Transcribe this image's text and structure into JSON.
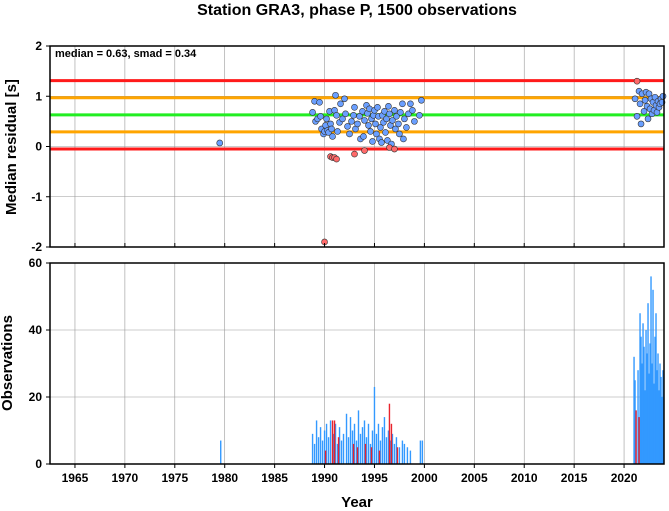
{
  "chart_data": [
    {
      "type": "scatter",
      "title": "Station GRA3, phase P, 1500 observations",
      "annotation": "median = 0.63, smad = 0.34",
      "xlabel": "",
      "ylabel": "Median residual [s]",
      "xlim": [
        1962.5,
        2024
      ],
      "ylim": [
        -2,
        2
      ],
      "yticks": [
        -2,
        -1,
        0,
        1,
        2
      ],
      "grid": true,
      "hlines": [
        {
          "y": 1.31,
          "color": "#ff1a1a"
        },
        {
          "y": 0.97,
          "color": "#ffa500"
        },
        {
          "y": 0.63,
          "color": "#22ee22"
        },
        {
          "y": 0.29,
          "color": "#ffa500"
        },
        {
          "y": -0.05,
          "color": "#ff1a1a"
        }
      ],
      "series": [
        {
          "color": "#6a9fff",
          "points": [
            [
              1979.5,
              0.07
            ],
            [
              1988.8,
              0.68
            ],
            [
              1989.0,
              0.9
            ],
            [
              1989.1,
              0.5
            ],
            [
              1989.3,
              0.55
            ],
            [
              1989.5,
              0.88
            ],
            [
              1989.6,
              0.6
            ],
            [
              1989.7,
              0.35
            ],
            [
              1989.9,
              0.25
            ],
            [
              1990.0,
              0.3
            ],
            [
              1990.1,
              0.42
            ],
            [
              1990.2,
              0.55
            ],
            [
              1990.3,
              0.32
            ],
            [
              1990.4,
              0.28
            ],
            [
              1990.5,
              0.7
            ],
            [
              1990.6,
              0.45
            ],
            [
              1990.7,
              0.35
            ],
            [
              1990.8,
              0.2
            ],
            [
              1991.0,
              0.72
            ],
            [
              1991.1,
              1.02
            ],
            [
              1991.2,
              0.62
            ],
            [
              1991.3,
              0.3
            ],
            [
              1991.5,
              0.48
            ],
            [
              1991.6,
              0.85
            ],
            [
              1991.8,
              0.55
            ],
            [
              1992.0,
              0.95
            ],
            [
              1992.1,
              0.65
            ],
            [
              1992.3,
              0.4
            ],
            [
              1992.5,
              0.25
            ],
            [
              1992.7,
              0.5
            ],
            [
              1992.9,
              0.62
            ],
            [
              1993.0,
              0.78
            ],
            [
              1993.1,
              0.35
            ],
            [
              1993.3,
              0.45
            ],
            [
              1993.5,
              0.6
            ],
            [
              1993.6,
              0.15
            ],
            [
              1993.8,
              0.7
            ],
            [
              1993.9,
              0.2
            ],
            [
              1994.0,
              0.52
            ],
            [
              1994.2,
              0.82
            ],
            [
              1994.3,
              0.66
            ],
            [
              1994.4,
              0.42
            ],
            [
              1994.5,
              0.75
            ],
            [
              1994.6,
              0.3
            ],
            [
              1994.7,
              0.55
            ],
            [
              1994.8,
              0.1
            ],
            [
              1994.9,
              0.62
            ],
            [
              1995.0,
              0.72
            ],
            [
              1995.1,
              0.45
            ],
            [
              1995.2,
              0.25
            ],
            [
              1995.3,
              0.78
            ],
            [
              1995.4,
              0.6
            ],
            [
              1995.5,
              0.15
            ],
            [
              1995.6,
              0.38
            ],
            [
              1995.7,
              0.08
            ],
            [
              1995.8,
              0.62
            ],
            [
              1995.9,
              0.48
            ],
            [
              1996.0,
              0.7
            ],
            [
              1996.1,
              0.28
            ],
            [
              1996.2,
              0.55
            ],
            [
              1996.3,
              0.12
            ],
            [
              1996.4,
              0.8
            ],
            [
              1996.5,
              0.65
            ],
            [
              1996.6,
              0.42
            ],
            [
              1996.7,
              0.05
            ],
            [
              1996.8,
              0.52
            ],
            [
              1997.0,
              0.72
            ],
            [
              1997.1,
              0.35
            ],
            [
              1997.2,
              0.6
            ],
            [
              1997.4,
              0.45
            ],
            [
              1997.5,
              0.25
            ],
            [
              1997.6,
              0.68
            ],
            [
              1997.8,
              0.85
            ],
            [
              1997.9,
              0.15
            ],
            [
              1998.0,
              0.55
            ],
            [
              1998.2,
              0.38
            ],
            [
              1998.4,
              0.65
            ],
            [
              1998.6,
              0.85
            ],
            [
              1998.8,
              0.72
            ],
            [
              1999.0,
              0.5
            ],
            [
              1999.5,
              0.62
            ],
            [
              1999.7,
              0.92
            ],
            [
              2021.1,
              0.95
            ],
            [
              2021.3,
              0.6
            ],
            [
              2021.5,
              1.1
            ],
            [
              2021.6,
              0.85
            ],
            [
              2021.7,
              0.45
            ],
            [
              2021.8,
              1.05
            ],
            [
              2022.0,
              0.7
            ],
            [
              2022.1,
              0.92
            ],
            [
              2022.2,
              1.08
            ],
            [
              2022.3,
              0.8
            ],
            [
              2022.4,
              0.55
            ],
            [
              2022.5,
              1.05
            ],
            [
              2022.6,
              0.75
            ],
            [
              2022.7,
              0.95
            ],
            [
              2022.8,
              0.65
            ],
            [
              2022.9,
              0.88
            ],
            [
              2023.0,
              0.72
            ],
            [
              2023.1,
              0.98
            ],
            [
              2023.2,
              0.82
            ],
            [
              2023.3,
              0.68
            ],
            [
              2023.4,
              0.9
            ],
            [
              2023.5,
              0.78
            ],
            [
              2023.6,
              0.85
            ],
            [
              2023.7,
              0.95
            ],
            [
              2023.8,
              0.88
            ],
            [
              2023.9,
              1.0
            ]
          ]
        },
        {
          "color": "#ff6a6a",
          "points": [
            [
              1990.0,
              -1.9
            ],
            [
              1990.6,
              -0.2
            ],
            [
              1990.8,
              -0.22
            ],
            [
              1991.0,
              -0.22
            ],
            [
              1991.2,
              -0.25
            ],
            [
              1993.0,
              -0.15
            ],
            [
              1994.0,
              -0.08
            ],
            [
              1996.5,
              -0.02
            ],
            [
              1997.0,
              -0.05
            ],
            [
              2021.3,
              1.3
            ]
          ]
        }
      ]
    },
    {
      "type": "bar",
      "xlabel": "Year",
      "ylabel": "Observations",
      "xlim": [
        1962.5,
        2024
      ],
      "ylim": [
        0,
        60
      ],
      "yticks": [
        0,
        20,
        40,
        60
      ],
      "xticks": [
        1965,
        1970,
        1975,
        1980,
        1985,
        1990,
        1995,
        2000,
        2005,
        2010,
        2015,
        2020
      ],
      "grid": true,
      "series": [
        {
          "color": "#3399ff",
          "bars": [
            [
              1979.6,
              7
            ],
            [
              1988.8,
              9
            ],
            [
              1989.0,
              6
            ],
            [
              1989.2,
              13
            ],
            [
              1989.4,
              8
            ],
            [
              1989.6,
              11
            ],
            [
              1989.8,
              7
            ],
            [
              1990.0,
              10
            ],
            [
              1990.2,
              12
            ],
            [
              1990.4,
              8
            ],
            [
              1990.6,
              13
            ],
            [
              1990.9,
              9
            ],
            [
              1991.1,
              12
            ],
            [
              1991.3,
              6
            ],
            [
              1991.5,
              11
            ],
            [
              1991.7,
              7
            ],
            [
              1991.9,
              9
            ],
            [
              1992.2,
              15
            ],
            [
              1992.4,
              8
            ],
            [
              1992.6,
              14
            ],
            [
              1992.8,
              10
            ],
            [
              1993.0,
              12
            ],
            [
              1993.2,
              7
            ],
            [
              1993.4,
              16
            ],
            [
              1993.6,
              9
            ],
            [
              1993.8,
              11
            ],
            [
              1994.0,
              13
            ],
            [
              1994.2,
              8
            ],
            [
              1994.4,
              12
            ],
            [
              1994.6,
              6
            ],
            [
              1994.8,
              10
            ],
            [
              1995.0,
              23
            ],
            [
              1995.2,
              9
            ],
            [
              1995.4,
              12
            ],
            [
              1995.6,
              7
            ],
            [
              1995.8,
              11
            ],
            [
              1996.0,
              14
            ],
            [
              1996.2,
              8
            ],
            [
              1996.4,
              10
            ],
            [
              1996.6,
              7
            ],
            [
              1996.8,
              9
            ],
            [
              1997.0,
              6
            ],
            [
              1997.2,
              8
            ],
            [
              1997.5,
              5
            ],
            [
              1997.8,
              7
            ],
            [
              1998.0,
              6
            ],
            [
              1998.3,
              5
            ],
            [
              1998.6,
              4
            ],
            [
              1999.6,
              7
            ],
            [
              1999.8,
              7
            ],
            [
              2021.0,
              32
            ],
            [
              2021.1,
              25
            ],
            [
              2021.2,
              16
            ],
            [
              2021.4,
              28
            ],
            [
              2021.6,
              45
            ],
            [
              2021.7,
              38
            ],
            [
              2021.8,
              30
            ],
            [
              2021.9,
              42
            ],
            [
              2022.0,
              35
            ],
            [
              2022.1,
              22
            ],
            [
              2022.2,
              40
            ],
            [
              2022.3,
              33
            ],
            [
              2022.4,
              48
            ],
            [
              2022.5,
              27
            ],
            [
              2022.6,
              36
            ],
            [
              2022.7,
              56
            ],
            [
              2022.8,
              30
            ],
            [
              2022.9,
              52
            ],
            [
              2023.0,
              24
            ],
            [
              2023.1,
              38
            ],
            [
              2023.2,
              45
            ],
            [
              2023.3,
              28
            ],
            [
              2023.4,
              33
            ],
            [
              2023.5,
              22
            ],
            [
              2023.6,
              30
            ],
            [
              2023.7,
              26
            ],
            [
              2023.8,
              20
            ],
            [
              2023.9,
              28
            ]
          ]
        },
        {
          "color": "#e8242d",
          "bars": [
            [
              1990.1,
              4
            ],
            [
              1990.8,
              13
            ],
            [
              1991.0,
              13
            ],
            [
              1991.4,
              8
            ],
            [
              1992.9,
              6
            ],
            [
              1993.3,
              5
            ],
            [
              1994.1,
              6
            ],
            [
              1994.7,
              5
            ],
            [
              1995.5,
              4
            ],
            [
              1996.5,
              18
            ],
            [
              1996.7,
              12
            ],
            [
              1997.3,
              5
            ],
            [
              2021.2,
              16
            ],
            [
              2021.5,
              14
            ]
          ]
        }
      ]
    }
  ]
}
